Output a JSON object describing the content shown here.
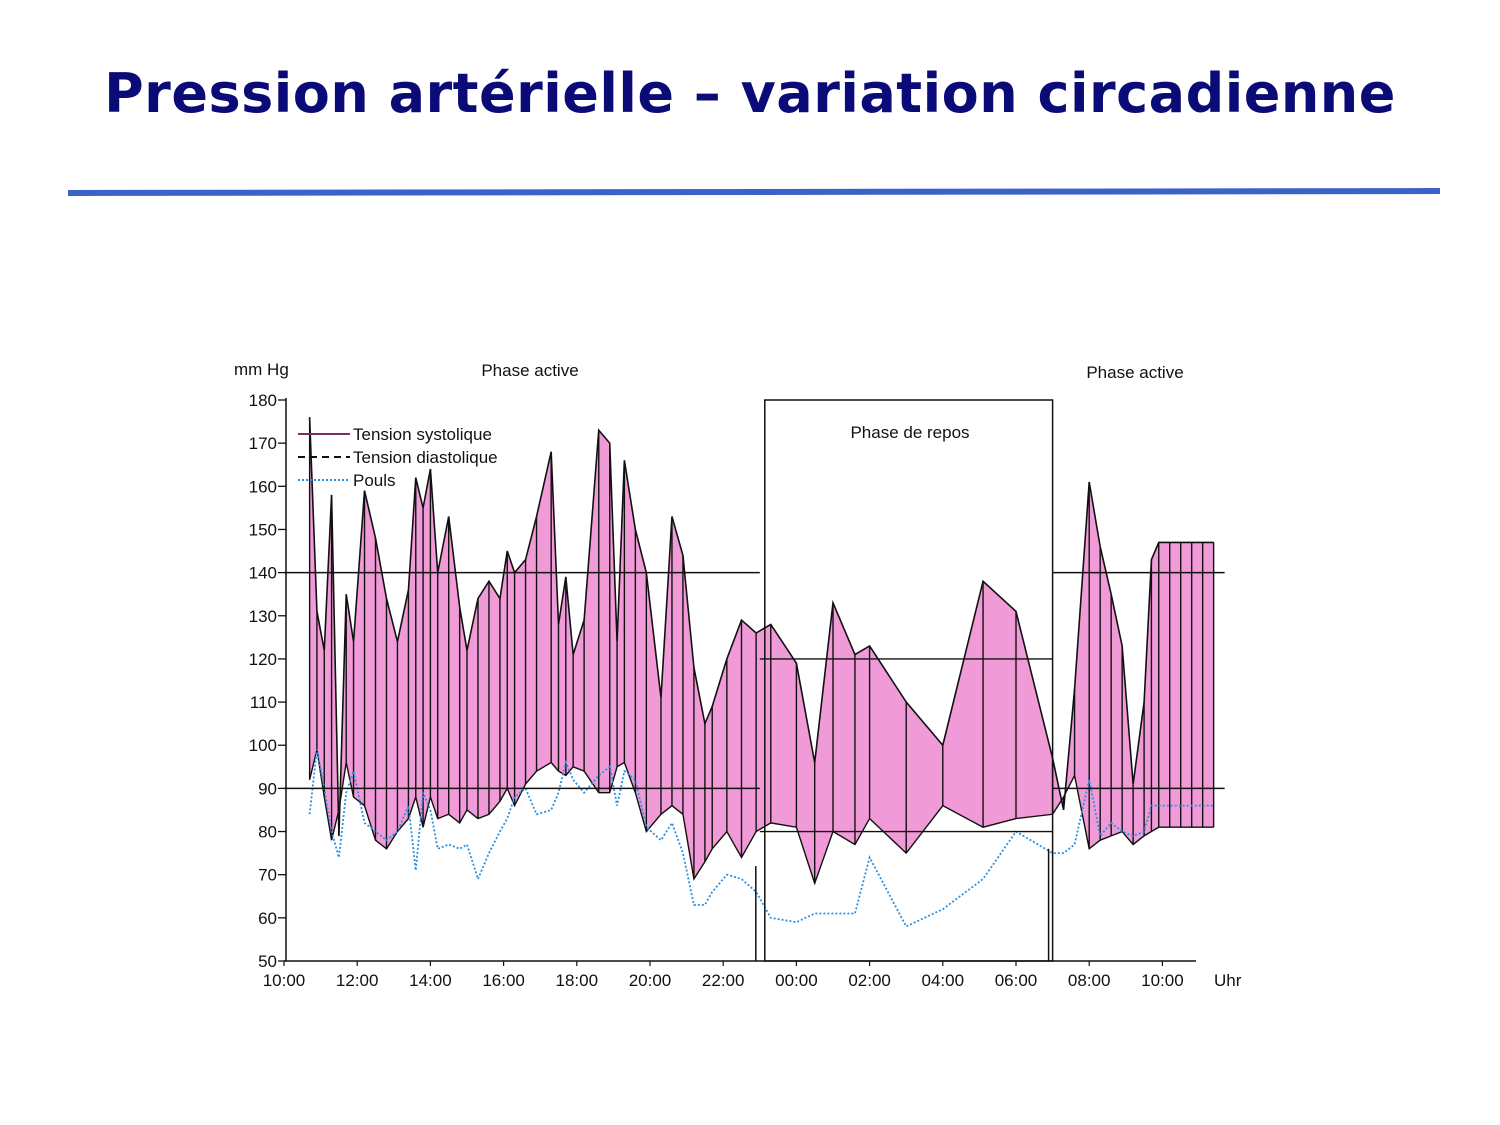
{
  "slide": {
    "title": "Pression artérielle – variation circadienne"
  },
  "chart_data": {
    "type": "area",
    "ylabel": "mm Hg",
    "xlabel": "Uhr",
    "ylim": [
      50,
      180
    ],
    "xlim_hours": [
      0,
      25.7
    ],
    "y_ticks": [
      180,
      170,
      160,
      150,
      140,
      130,
      120,
      110,
      100,
      90,
      80,
      70,
      60,
      50
    ],
    "x_ticks": [
      "10:00",
      "12:00",
      "14:00",
      "16:00",
      "18:00",
      "20:00",
      "22:00",
      "00:00",
      "02:00",
      "04:00",
      "06:00",
      "08:00",
      "10:00"
    ],
    "phases": [
      {
        "label": "Phase active",
        "start_h": 0,
        "end_h": 13
      },
      {
        "label": "Phase de repos",
        "start_h": 13,
        "end_h": 21
      },
      {
        "label": "Phase active",
        "start_h": 21,
        "end_h": 25.7
      }
    ],
    "reference_lines": [
      {
        "phase": "active",
        "start_h": 0,
        "end_h": 13,
        "values": [
          140,
          90
        ]
      },
      {
        "phase": "repos",
        "start_h": 13,
        "end_h": 21,
        "values": [
          120,
          80
        ]
      },
      {
        "phase": "active",
        "start_h": 21,
        "end_h": 25.7,
        "values": [
          140,
          90
        ]
      }
    ],
    "legend": [
      {
        "label": "Tension systolique",
        "style": "solid",
        "color": "#7a2a6a"
      },
      {
        "label": "Tension diastolique",
        "style": "dashed",
        "color": "#111111"
      },
      {
        "label": "Pouls",
        "style": "dotted",
        "color": "#2b8fe0"
      }
    ],
    "colors": {
      "fill": "#f19ad8",
      "outline": "#111111",
      "pulse": "#2b8fe0",
      "frame": "#111111"
    },
    "x_hours": [
      0.7,
      0.9,
      1.1,
      1.3,
      1.5,
      1.7,
      1.9,
      2.2,
      2.5,
      2.8,
      3.1,
      3.4,
      3.6,
      3.8,
      4.0,
      4.2,
      4.5,
      4.8,
      5.0,
      5.3,
      5.6,
      5.9,
      6.1,
      6.3,
      6.6,
      6.9,
      7.3,
      7.5,
      7.7,
      7.9,
      8.2,
      8.6,
      8.9,
      9.1,
      9.3,
      9.6,
      9.9,
      10.3,
      10.6,
      10.9,
      11.2,
      11.5,
      11.7,
      12.1,
      12.5,
      12.9,
      13.3,
      14.0,
      14.5,
      15.0,
      15.6,
      16.0,
      17.0,
      18.0,
      19.1,
      20.0,
      21.0,
      21.3,
      21.6,
      22.0,
      22.3,
      22.6,
      22.9,
      23.2,
      23.5,
      23.7,
      23.9,
      24.2,
      24.5,
      24.8,
      25.1,
      25.4
    ],
    "series": [
      {
        "name": "Tension systolique",
        "values": [
          176,
          131,
          122,
          158,
          79,
          135,
          124,
          159,
          148,
          134,
          124,
          136,
          162,
          155,
          164,
          140,
          153,
          132,
          122,
          134,
          138,
          134,
          145,
          140,
          143,
          153,
          168,
          128,
          139,
          121,
          129,
          173,
          170,
          124,
          166,
          150,
          140,
          111,
          153,
          144,
          118,
          105,
          109,
          120,
          129,
          126,
          128,
          119,
          96,
          133,
          121,
          123,
          110,
          100,
          138,
          131,
          97,
          85,
          113,
          161,
          146,
          135,
          123,
          91,
          110,
          143,
          147,
          147,
          147,
          147,
          147,
          147
        ]
      },
      {
        "name": "Tension diastolique",
        "values": [
          92,
          99,
          88,
          78,
          85,
          96,
          88,
          86,
          78,
          76,
          80,
          83,
          88,
          81,
          88,
          83,
          84,
          82,
          85,
          83,
          84,
          87,
          90,
          86,
          91,
          94,
          96,
          94,
          93,
          95,
          94,
          89,
          89,
          95,
          96,
          89,
          80,
          84,
          86,
          84,
          69,
          73,
          76,
          80,
          74,
          80,
          82,
          81,
          68,
          80,
          77,
          83,
          75,
          86,
          81,
          83,
          84,
          88,
          93,
          76,
          78,
          79,
          80,
          77,
          79,
          80,
          81,
          81,
          81,
          81,
          81,
          81
        ]
      },
      {
        "name": "Pouls",
        "values": [
          84,
          99,
          90,
          80,
          74,
          89,
          94,
          82,
          80,
          78,
          80,
          86,
          71,
          89,
          85,
          76,
          77,
          76,
          77,
          69,
          75,
          80,
          83,
          88,
          90,
          84,
          85,
          89,
          96,
          92,
          89,
          93,
          95,
          86,
          94,
          92,
          81,
          78,
          82,
          75,
          63,
          63,
          66,
          70,
          69,
          66,
          60,
          59,
          61,
          61,
          61,
          74,
          58,
          62,
          69,
          80,
          75,
          75,
          77,
          92,
          79,
          82,
          80,
          79,
          80,
          86,
          86,
          86,
          86,
          86,
          86,
          86
        ]
      }
    ]
  }
}
